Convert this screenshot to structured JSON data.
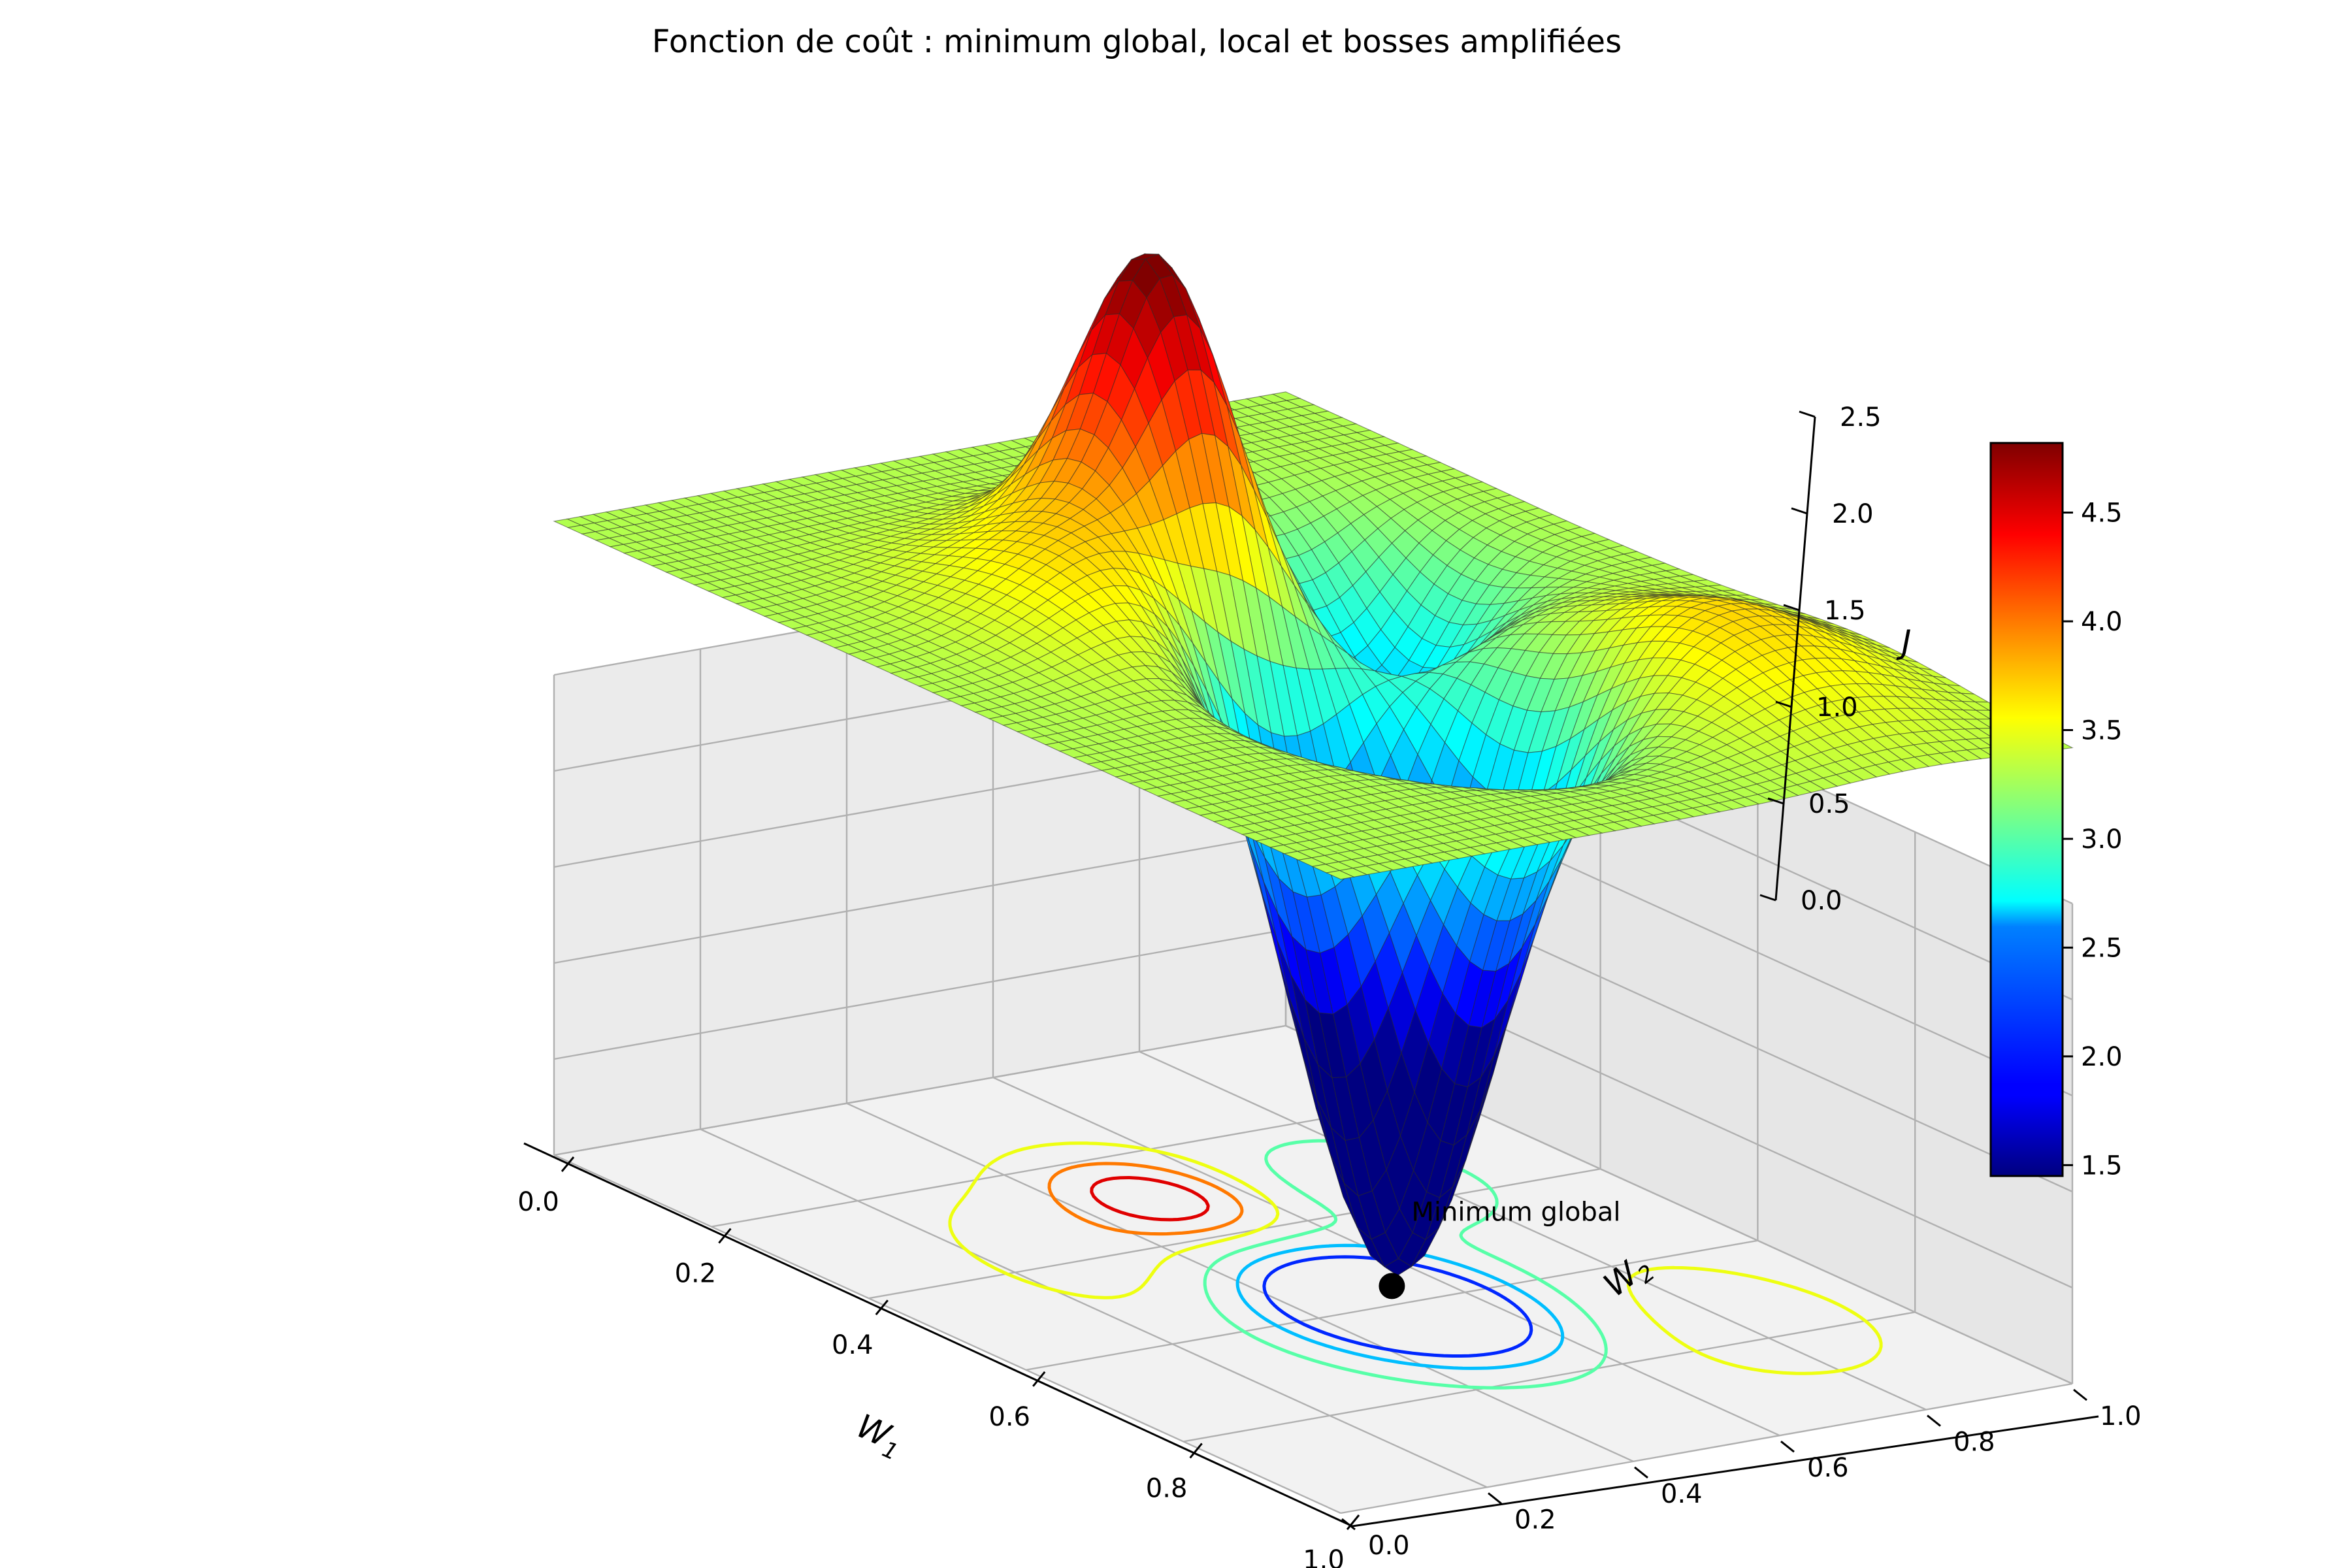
{
  "chart_data": {
    "type": "surface3d",
    "title": "Fonction de coût : minimum global, local et bosses amplifiées",
    "xlabel": "W_1",
    "ylabel": "W_2",
    "zlabel": "J",
    "x_ticks": [
      "0.0",
      "0.2",
      "0.4",
      "0.6",
      "0.8",
      "1.0"
    ],
    "y_ticks": [
      "0.0",
      "0.2",
      "0.4",
      "0.6",
      "0.8",
      "1.0"
    ],
    "z_ticks": [
      "0.0",
      "0.5",
      "1.0",
      "1.5",
      "2.0",
      "2.5"
    ],
    "xlim": [
      0,
      1
    ],
    "ylim": [
      0,
      1
    ],
    "zlim": [
      0,
      2.5
    ],
    "colormap": "jet",
    "colorbar": {
      "min": 1.45,
      "max": 4.82,
      "ticks": [
        "1.5",
        "2.0",
        "2.5",
        "3.0",
        "3.5",
        "4.0",
        "4.5"
      ],
      "tick_values": [
        1.5,
        2.0,
        2.5,
        3.0,
        3.5,
        4.0,
        4.5
      ]
    },
    "surface": {
      "base_level": 3.3,
      "features": [
        {
          "kind": "global_minimum",
          "w1": 0.6,
          "w2": 0.5,
          "depth": 3.2,
          "width": 0.1
        },
        {
          "kind": "local_minimum",
          "w1": 0.35,
          "w2": 0.75,
          "depth": 0.8,
          "width": 0.08
        },
        {
          "kind": "bump",
          "w1": 0.4,
          "w2": 0.35,
          "height": 0.5,
          "width": 0.12
        },
        {
          "kind": "bump",
          "w1": 0.75,
          "w2": 0.8,
          "height": 0.4,
          "width": 0.12
        },
        {
          "kind": "peak",
          "w1": 0.3,
          "w2": 0.5,
          "height": 1.5,
          "width": 0.07
        }
      ]
    },
    "contours": {
      "offset_z": 0,
      "levels": [
        2.0,
        2.5,
        3.0,
        3.5,
        4.0,
        4.5
      ]
    },
    "annotations": [
      {
        "label": "Minimum global",
        "w1": 0.6,
        "w2": 0.5,
        "z": 0.1
      }
    ]
  }
}
